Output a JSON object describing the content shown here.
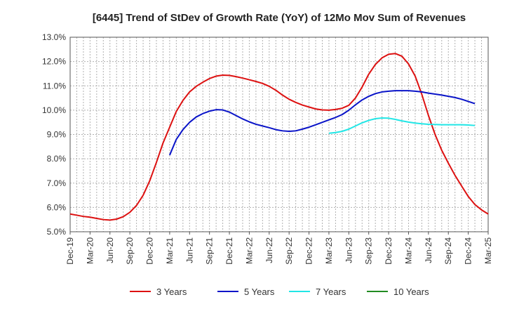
{
  "chart_data": {
    "type": "line",
    "title": "[6445]  Trend of StDev of Growth Rate (YoY) of 12Mo Mov Sum of Revenues",
    "xlabel": "",
    "ylabel": "",
    "ylim": [
      5.0,
      13.0
    ],
    "y_ticks": [
      "5.0%",
      "6.0%",
      "7.0%",
      "8.0%",
      "9.0%",
      "10.0%",
      "11.0%",
      "12.0%",
      "13.0%"
    ],
    "x_tick_labels": [
      "Dec-19",
      "Mar-20",
      "Jun-20",
      "Sep-20",
      "Dec-20",
      "Mar-21",
      "Jun-21",
      "Sep-21",
      "Dec-21",
      "Mar-22",
      "Jun-22",
      "Sep-22",
      "Dec-22",
      "Mar-23",
      "Jun-23",
      "Sep-23",
      "Dec-23",
      "Mar-24",
      "Jun-24",
      "Sep-24",
      "Dec-24",
      "Mar-25"
    ],
    "grid": true,
    "legend_position": "bottom",
    "series": [
      {
        "name": "3 Years",
        "color": "#dd1111",
        "start_index": 0,
        "values": [
          5.73,
          5.68,
          5.63,
          5.6,
          5.55,
          5.5,
          5.48,
          5.52,
          5.62,
          5.8,
          6.08,
          6.5,
          7.1,
          7.85,
          8.65,
          9.3,
          9.95,
          10.4,
          10.75,
          10.98,
          11.15,
          11.3,
          11.4,
          11.44,
          11.43,
          11.38,
          11.32,
          11.25,
          11.18,
          11.1,
          10.98,
          10.82,
          10.62,
          10.45,
          10.32,
          10.21,
          10.13,
          10.05,
          10.01,
          10.0,
          10.03,
          10.08,
          10.2,
          10.5,
          10.95,
          11.48,
          11.88,
          12.15,
          12.3,
          12.33,
          12.22,
          11.9,
          11.4,
          10.65,
          9.78,
          9.0,
          8.35,
          7.82,
          7.32,
          6.88,
          6.45,
          6.12,
          5.9,
          5.73
        ]
      },
      {
        "name": "5 Years",
        "color": "#0a14c8",
        "start_index": 15,
        "values": [
          8.15,
          8.8,
          9.2,
          9.5,
          9.72,
          9.86,
          9.96,
          10.02,
          10.01,
          9.92,
          9.78,
          9.64,
          9.52,
          9.42,
          9.35,
          9.28,
          9.2,
          9.15,
          9.13,
          9.15,
          9.22,
          9.3,
          9.4,
          9.5,
          9.6,
          9.7,
          9.82,
          10.0,
          10.22,
          10.42,
          10.57,
          10.68,
          10.75,
          10.78,
          10.8,
          10.8,
          10.8,
          10.78,
          10.75,
          10.7,
          10.66,
          10.62,
          10.57,
          10.52,
          10.45,
          10.36,
          10.27
        ]
      },
      {
        "name": "7 Years",
        "color": "#22e6e6",
        "start_index": 39,
        "values": [
          9.05,
          9.08,
          9.13,
          9.22,
          9.35,
          9.48,
          9.58,
          9.65,
          9.68,
          9.67,
          9.62,
          9.56,
          9.51,
          9.47,
          9.44,
          9.42,
          9.41,
          9.4,
          9.4,
          9.4,
          9.4,
          9.39,
          9.37
        ]
      },
      {
        "name": "10 Years",
        "color": "#228b22",
        "start_index": 0,
        "values": []
      }
    ]
  }
}
